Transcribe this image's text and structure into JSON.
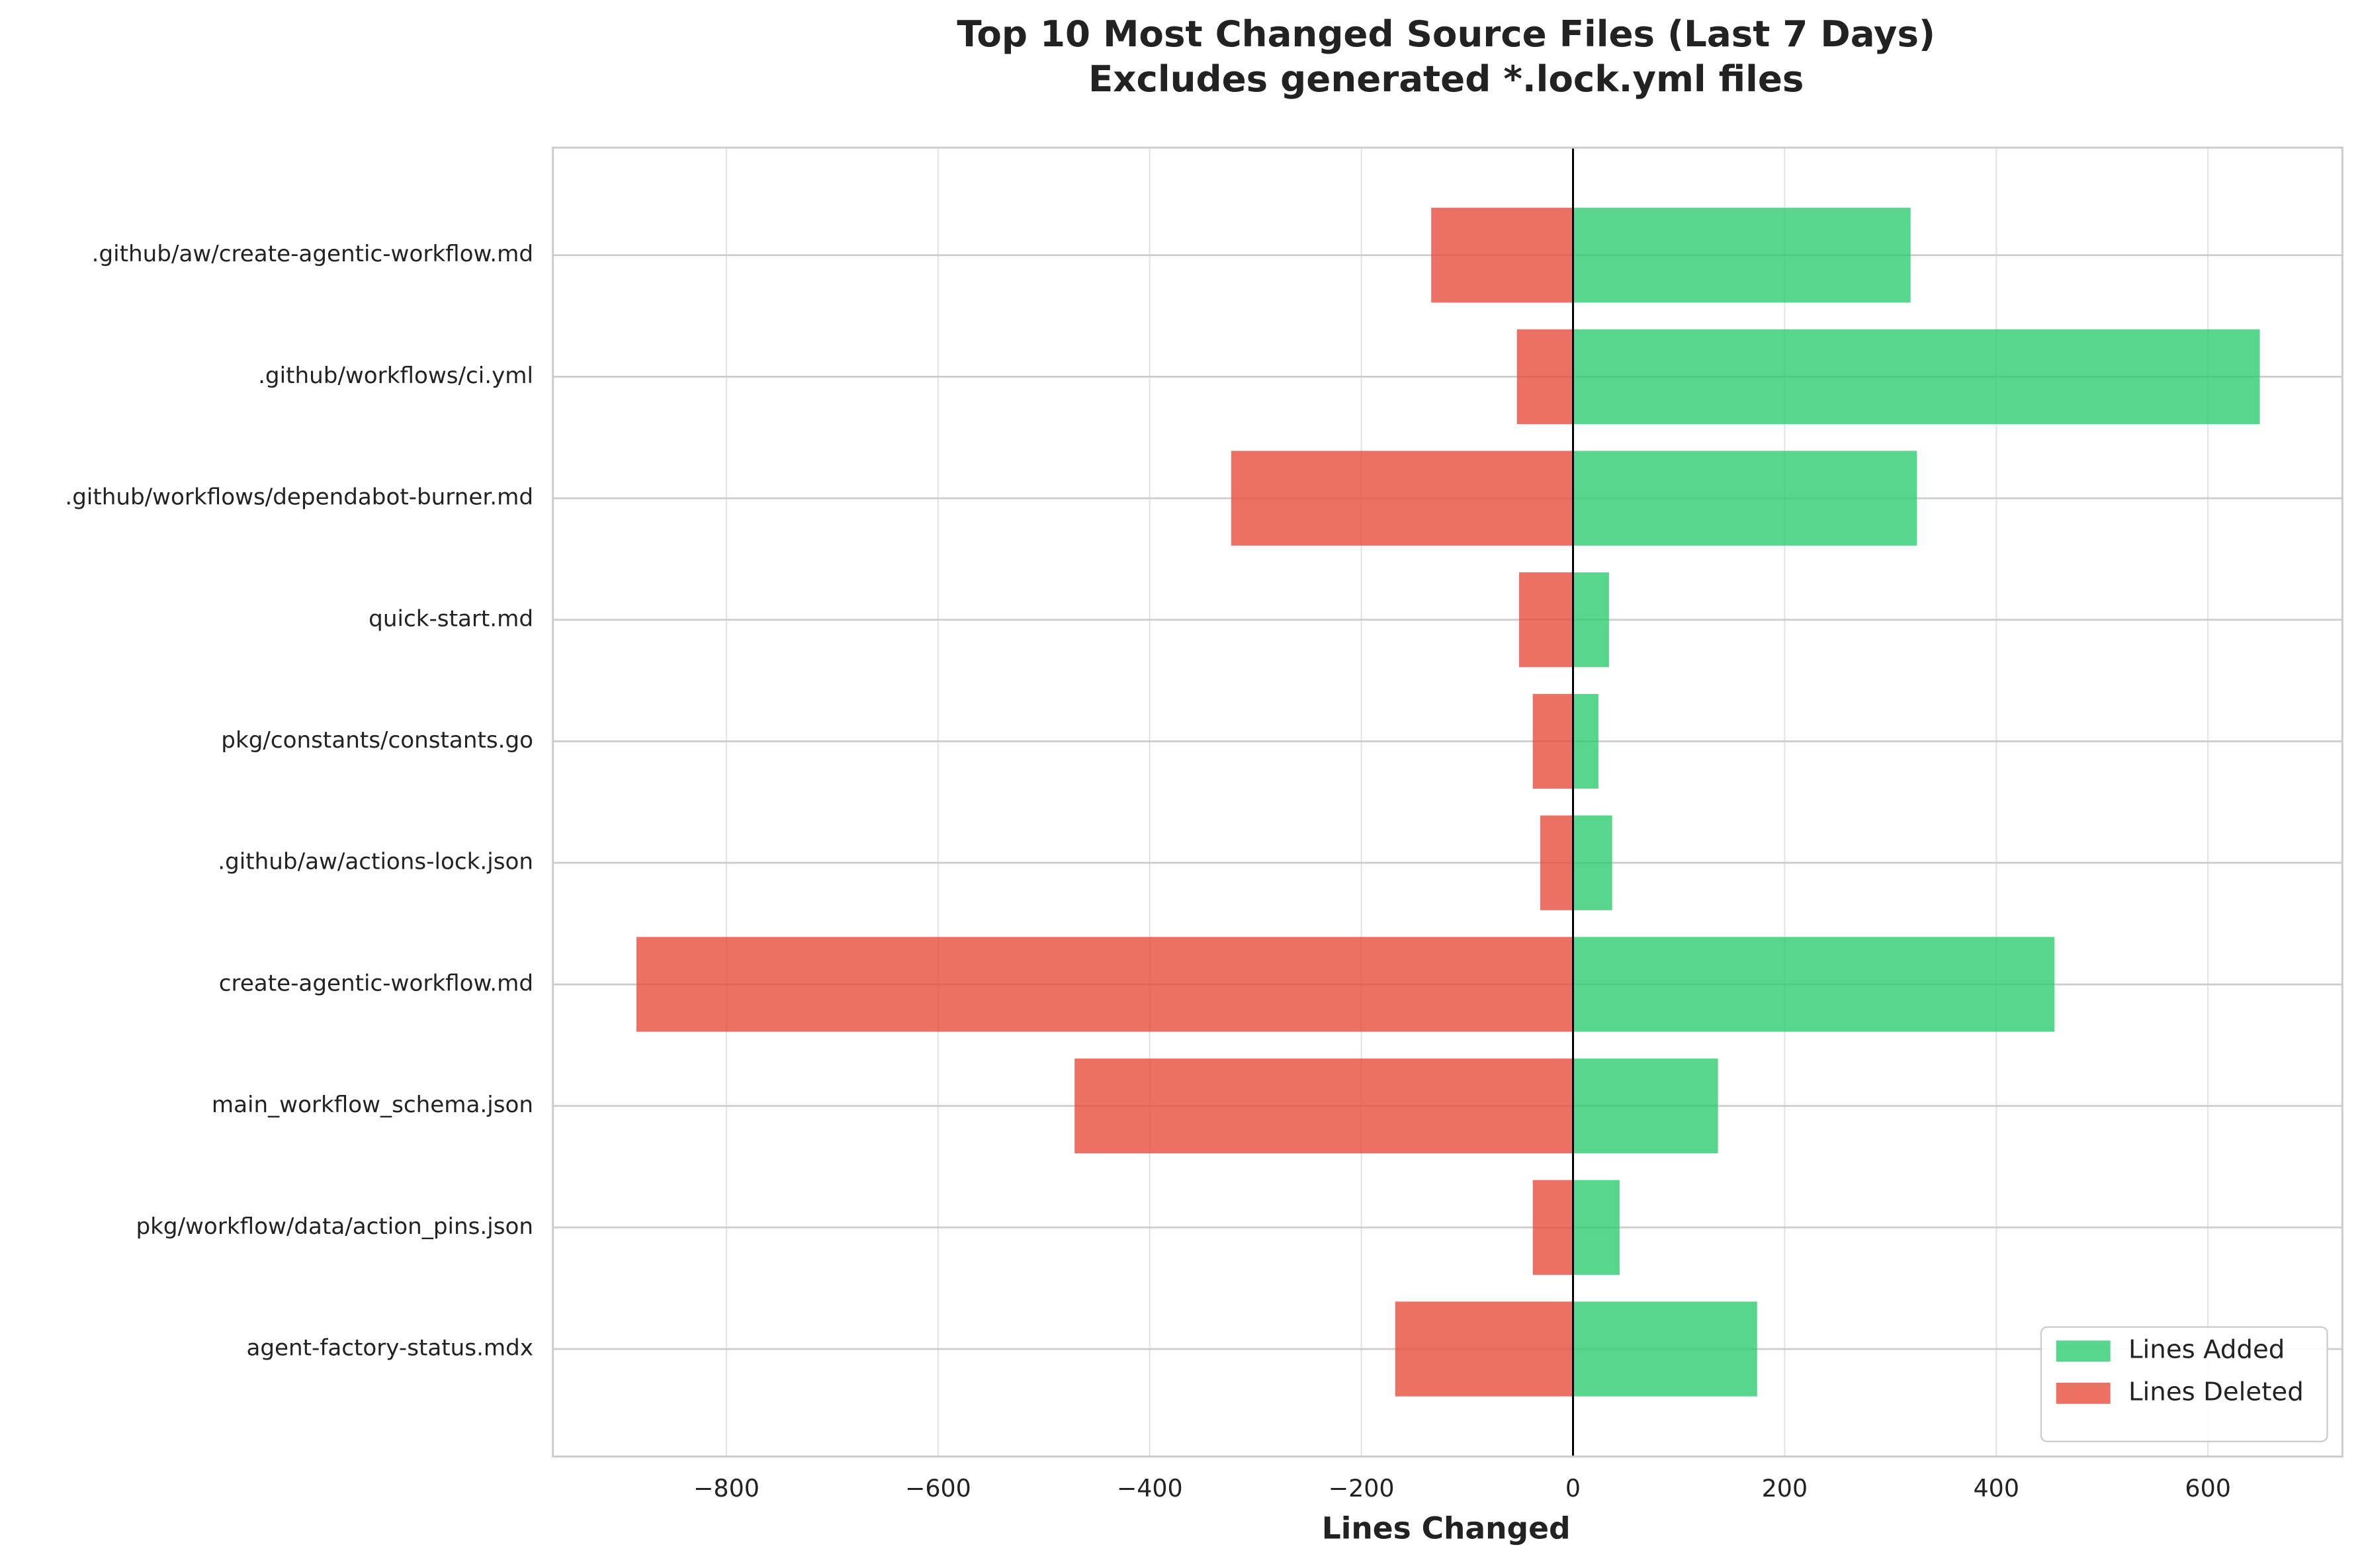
{
  "chart_data": {
    "type": "diverging-barh",
    "title": "Top 10 Most Changed Source Files (Last 7 Days)",
    "subtitle": "Excludes generated *.lock.yml files",
    "x_label": "Lines Changed",
    "categories": [
      ".github/aw/create-agentic-workflow.md",
      ".github/workflows/ci.yml",
      ".github/workflows/dependabot-burner.md",
      "quick-start.md",
      "pkg/constants/constants.go",
      ".github/aw/actions-lock.json",
      "create-agentic-workflow.md",
      "main_workflow_schema.json",
      "pkg/workflow/data/action_pins.json",
      "agent-factory-status.mdx"
    ],
    "series": [
      {
        "name": "Lines Added",
        "color": "#2ecc71",
        "values": [
          319,
          649,
          325,
          34,
          24,
          37,
          455,
          137,
          44,
          174
        ]
      },
      {
        "name": "Lines Deleted",
        "color": "#e74c3c",
        "values": [
          -134,
          -53,
          -323,
          -51,
          -38,
          -31,
          -885,
          -471,
          -38,
          -168
        ]
      }
    ],
    "xlim": [
      -964,
      727
    ],
    "xticks": [
      {
        "value": -800,
        "label": "−800"
      },
      {
        "value": -600,
        "label": "−600"
      },
      {
        "value": -400,
        "label": "−400"
      },
      {
        "value": -200,
        "label": "−200"
      },
      0,
      200,
      400,
      600
    ],
    "grid": true,
    "legend": "lower right"
  }
}
